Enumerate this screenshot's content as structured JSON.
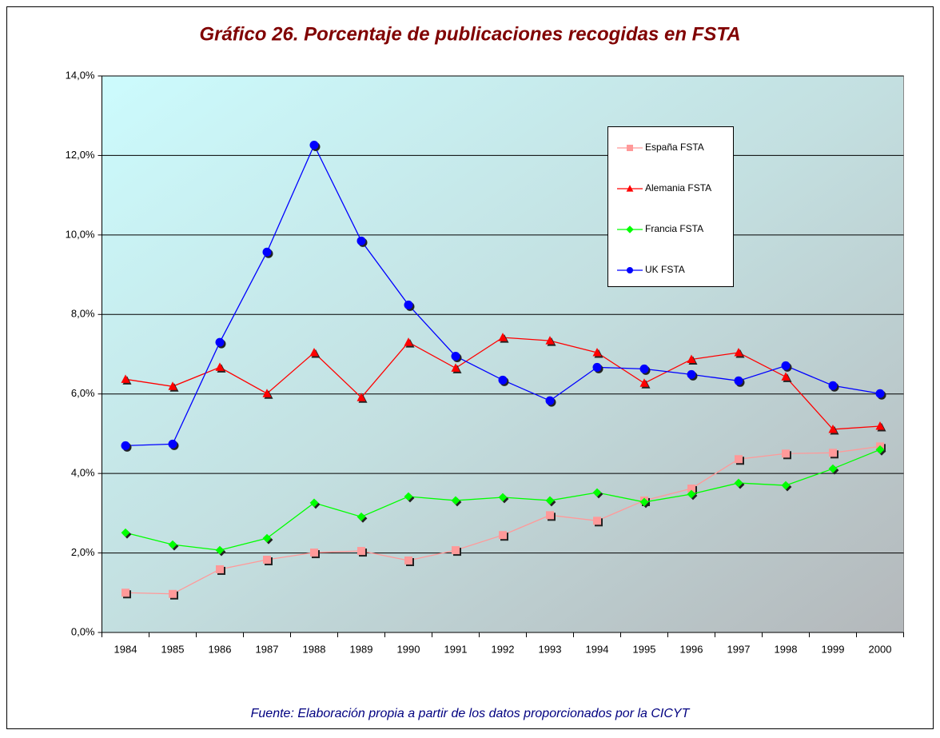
{
  "chart_data": {
    "type": "line",
    "title": "Gráfico 26. Porcentaje de publicaciones recogidas en FSTA",
    "source": "Fuente: Elaboración propia a partir de los datos proporcionados por la CICYT",
    "categories": [
      "1984",
      "1985",
      "1986",
      "1987",
      "1988",
      "1989",
      "1990",
      "1991",
      "1992",
      "1993",
      "1994",
      "1995",
      "1996",
      "1997",
      "1998",
      "1999",
      "2000"
    ],
    "series": [
      {
        "name": "España FSTA",
        "color": "#ff9999",
        "marker": "square",
        "values": [
          1.0,
          0.97,
          1.59,
          1.83,
          2.01,
          2.05,
          1.81,
          2.07,
          2.45,
          2.95,
          2.81,
          3.32,
          3.62,
          4.36,
          4.5,
          4.52,
          4.68
        ]
      },
      {
        "name": "Alemania FSTA",
        "color": "#ff0000",
        "marker": "triangle",
        "values": [
          6.37,
          6.19,
          6.67,
          6.01,
          7.04,
          5.91,
          7.3,
          6.65,
          7.42,
          7.34,
          7.04,
          6.27,
          6.87,
          7.04,
          6.43,
          5.11,
          5.19
        ]
      },
      {
        "name": "Francia FSTA",
        "color": "#00ff00",
        "marker": "diamond",
        "values": [
          2.51,
          2.21,
          2.07,
          2.37,
          3.26,
          2.91,
          3.42,
          3.32,
          3.4,
          3.32,
          3.52,
          3.28,
          3.48,
          3.76,
          3.7,
          4.12,
          4.6
        ]
      },
      {
        "name": "UK FSTA",
        "color": "#0000ff",
        "marker": "circle",
        "values": [
          4.7,
          4.74,
          7.3,
          9.57,
          12.26,
          9.85,
          8.24,
          6.95,
          6.35,
          5.83,
          6.67,
          6.63,
          6.49,
          6.33,
          6.71,
          6.21,
          6.01
        ]
      }
    ],
    "ylim": [
      0,
      14
    ],
    "yticks": [
      {
        "value": 0,
        "label": "0,0%"
      },
      {
        "value": 2,
        "label": "2,0%"
      },
      {
        "value": 4,
        "label": "4,0%"
      },
      {
        "value": 6,
        "label": "6,0%"
      },
      {
        "value": 8,
        "label": "8,0%"
      },
      {
        "value": 10,
        "label": "10,0%"
      },
      {
        "value": 12,
        "label": "12,0%"
      },
      {
        "value": 14,
        "label": "14,0%"
      }
    ],
    "grid": true,
    "legend": "upper right"
  }
}
